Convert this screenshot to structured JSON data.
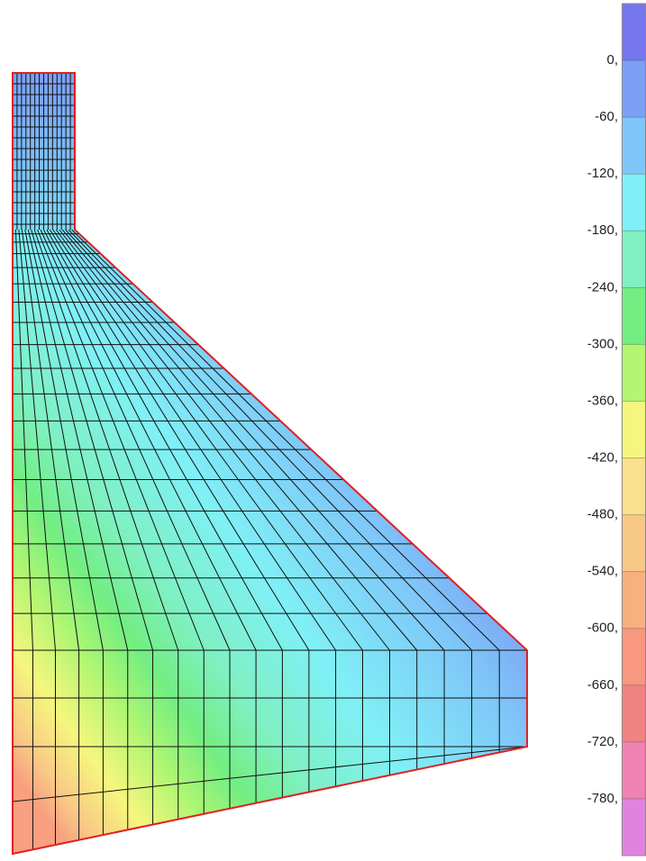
{
  "legend": {
    "labels": [
      "0,",
      "-60,",
      "-120,",
      "-180,",
      "-240,",
      "-300,",
      "-360,",
      "-420,",
      "-480,",
      "-540,",
      "-600,",
      "-660,",
      "-720,",
      "-780,"
    ],
    "colors": [
      "#7676ee",
      "#7c9ff4",
      "#7fc6f8",
      "#7ff0f6",
      "#7ff0c2",
      "#72ee82",
      "#b2f672",
      "#f6f67e",
      "#f8e08e",
      "#f8c886",
      "#f8b07e",
      "#f8987e",
      "#f08282",
      "#f082b4",
      "#e282e0"
    ]
  }
}
